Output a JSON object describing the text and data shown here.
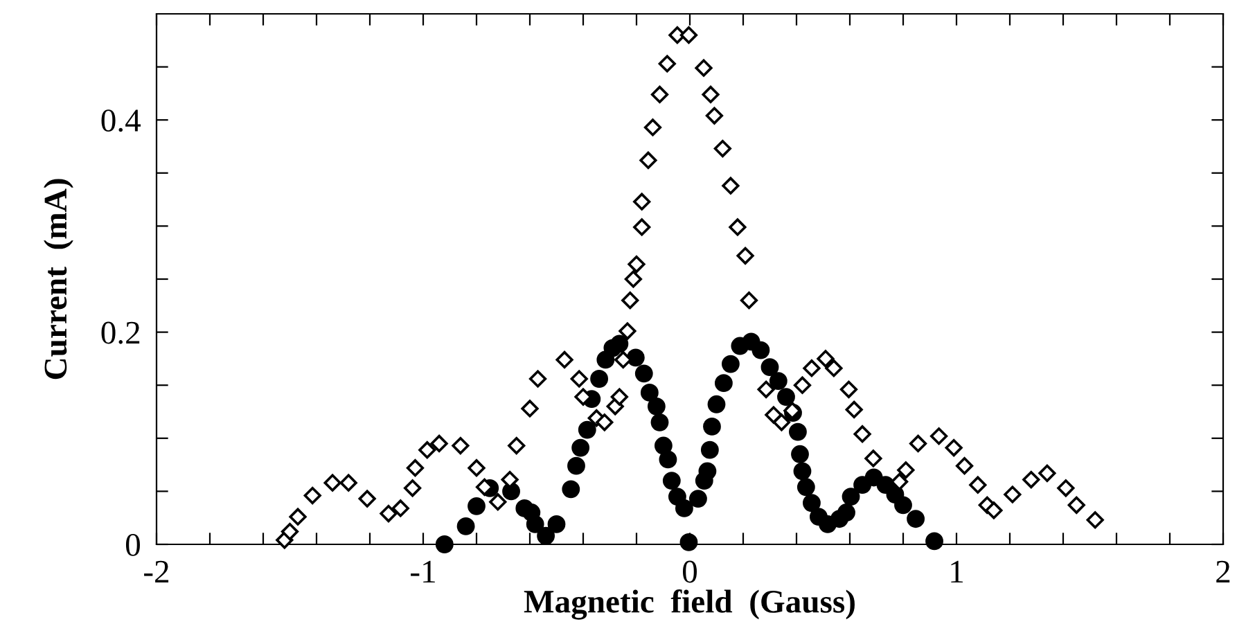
{
  "chart_data": {
    "type": "scatter",
    "xlabel": "Magnetic  field  (Gauss)",
    "ylabel": "Current  (mA)",
    "xlim": [
      -2,
      2
    ],
    "ylim": [
      0,
      0.5
    ],
    "xticks": [
      -2,
      {
        "value": -1.8,
        "label": null
      },
      {
        "value": -1.6,
        "label": null
      },
      {
        "value": -1.4,
        "label": null
      },
      {
        "value": -1.2,
        "label": null
      },
      -1,
      {
        "value": -0.8,
        "label": null
      },
      {
        "value": -0.6,
        "label": null
      },
      {
        "value": -0.4,
        "label": null
      },
      {
        "value": -0.2,
        "label": null
      },
      0,
      {
        "value": 0.2,
        "label": null
      },
      {
        "value": 0.4,
        "label": null
      },
      {
        "value": 0.6,
        "label": null
      },
      {
        "value": 0.8,
        "label": null
      },
      1,
      {
        "value": 1.2,
        "label": null
      },
      {
        "value": 1.4,
        "label": null
      },
      {
        "value": 1.6,
        "label": null
      },
      {
        "value": 1.8,
        "label": null
      },
      2
    ],
    "yticks": [
      0,
      {
        "value": 0.05,
        "label": null
      },
      {
        "value": 0.1,
        "label": null
      },
      {
        "value": 0.15,
        "label": null
      },
      0.2,
      {
        "value": 0.25,
        "label": null
      },
      {
        "value": 0.3,
        "label": null
      },
      {
        "value": 0.35,
        "label": null
      },
      0.4,
      {
        "value": 0.45,
        "label": null
      }
    ],
    "grid": false,
    "series": [
      {
        "color": "#000000",
        "marker": "diamond",
        "x": [
          -1.52,
          -1.5,
          -1.47,
          -1.415,
          -1.34,
          -1.28,
          -1.21,
          -1.13,
          -1.085,
          -1.04,
          -1.03,
          -0.985,
          -0.94,
          -0.86,
          -0.8,
          -0.77,
          -0.72,
          -0.675,
          -0.65,
          -0.6,
          -0.57,
          -0.47,
          -0.415,
          -0.4,
          -0.35,
          -0.32,
          -0.28,
          -0.264,
          -0.25,
          -0.234,
          -0.224,
          -0.212,
          -0.2,
          -0.18,
          -0.18,
          -0.156,
          -0.139,
          -0.113,
          -0.085,
          -0.047,
          -0.004,
          0.052,
          0.078,
          0.092,
          0.123,
          0.153,
          0.179,
          0.208,
          0.222,
          0.286,
          0.314,
          0.344,
          0.384,
          0.422,
          0.457,
          0.509,
          0.54,
          0.596,
          0.616,
          0.647,
          0.688,
          0.786,
          0.81,
          0.856,
          0.934,
          0.99,
          1.03,
          1.08,
          1.115,
          1.14,
          1.21,
          1.28,
          1.34,
          1.41,
          1.45,
          1.52
        ],
        "values": [
          0.004,
          0.012,
          0.026,
          0.046,
          0.058,
          0.058,
          0.043,
          0.029,
          0.034,
          0.053,
          0.072,
          0.089,
          0.095,
          0.093,
          0.072,
          0.054,
          0.04,
          0.061,
          0.093,
          0.128,
          0.156,
          0.174,
          0.156,
          0.139,
          0.119,
          0.115,
          0.13,
          0.139,
          0.174,
          0.201,
          0.23,
          0.25,
          0.264,
          0.299,
          0.323,
          0.362,
          0.393,
          0.424,
          0.453,
          0.48,
          0.48,
          0.449,
          0.424,
          0.404,
          0.373,
          0.338,
          0.299,
          0.272,
          0.23,
          0.146,
          0.122,
          0.115,
          0.126,
          0.15,
          0.166,
          0.175,
          0.166,
          0.146,
          0.127,
          0.104,
          0.081,
          0.059,
          0.07,
          0.095,
          0.102,
          0.091,
          0.074,
          0.056,
          0.037,
          0.032,
          0.047,
          0.061,
          0.067,
          0.053,
          0.037,
          0.023
        ]
      },
      {
        "color": "#000000",
        "marker": "circle",
        "x": [
          -0.92,
          -0.84,
          -0.8,
          -0.75,
          -0.67,
          -0.62,
          -0.594,
          -0.58,
          -0.54,
          -0.5,
          -0.446,
          -0.426,
          -0.41,
          -0.385,
          -0.368,
          -0.34,
          -0.316,
          -0.29,
          -0.264,
          -0.203,
          -0.172,
          -0.151,
          -0.125,
          -0.113,
          -0.099,
          -0.082,
          -0.068,
          -0.047,
          -0.021,
          -0.004,
          0.031,
          0.054,
          0.066,
          0.075,
          0.083,
          0.1,
          0.127,
          0.153,
          0.188,
          0.23,
          0.266,
          0.3,
          0.332,
          0.361,
          0.387,
          0.405,
          0.413,
          0.422,
          0.436,
          0.457,
          0.483,
          0.517,
          0.561,
          0.587,
          0.604,
          0.647,
          0.69,
          0.734,
          0.77,
          0.8,
          0.847,
          0.917
        ],
        "values": [
          0.0,
          0.017,
          0.036,
          0.053,
          0.05,
          0.034,
          0.03,
          0.019,
          0.008,
          0.019,
          0.052,
          0.074,
          0.091,
          0.108,
          0.137,
          0.156,
          0.174,
          0.185,
          0.189,
          0.176,
          0.161,
          0.143,
          0.13,
          0.115,
          0.093,
          0.08,
          0.06,
          0.045,
          0.034,
          0.002,
          0.043,
          0.06,
          0.069,
          0.089,
          0.111,
          0.132,
          0.152,
          0.17,
          0.187,
          0.191,
          0.183,
          0.167,
          0.154,
          0.139,
          0.124,
          0.106,
          0.085,
          0.069,
          0.054,
          0.039,
          0.026,
          0.019,
          0.024,
          0.03,
          0.045,
          0.056,
          0.063,
          0.056,
          0.047,
          0.037,
          0.024,
          0.003
        ]
      }
    ]
  }
}
